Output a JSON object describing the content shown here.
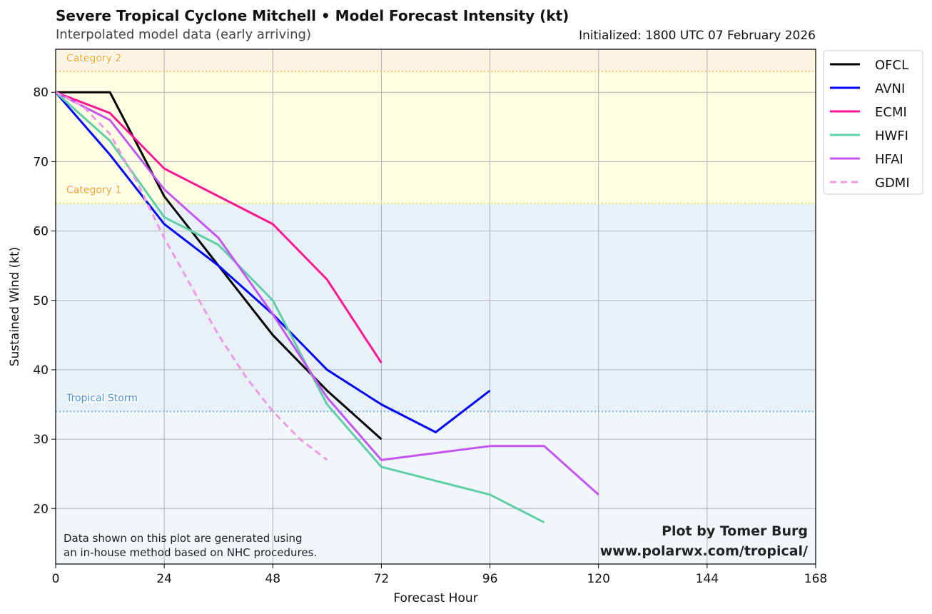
{
  "chart_data": {
    "type": "line",
    "title": "Severe Tropical Cyclone Mitchell • Model Forecast Intensity (kt)",
    "subtitle": "Interpolated model data (early arriving)",
    "initialized": "Initialized: 1800 UTC 07 February 2026",
    "xlabel": "Forecast Hour",
    "ylabel": "Sustained Wind (kt)",
    "xlim": [
      0,
      168
    ],
    "ylim": [
      12,
      86.2
    ],
    "xticks": [
      0,
      24,
      48,
      72,
      96,
      120,
      144,
      168
    ],
    "yticks": [
      20,
      30,
      40,
      50,
      60,
      70,
      80
    ],
    "grid": true,
    "legend_position": "outside-top-right",
    "bands": [
      {
        "label": "Category 2",
        "from": 83,
        "to": 90,
        "fill": "#fdf3e1",
        "line": "#f5c86a"
      },
      {
        "label": "Category 1",
        "from": 64,
        "to": 83,
        "fill": "#ffffe4",
        "line": "#e8e860"
      },
      {
        "label": "Tropical Storm",
        "from": 34,
        "to": 64,
        "fill": "#e8f1f8",
        "line": "#7fb3e0"
      },
      {
        "label": "",
        "from": 0,
        "to": 34,
        "fill": "#f1f6fa",
        "line": null
      }
    ],
    "band_label_colors": {
      "Category 2": "#f5a623",
      "Category 1": "#f5a623",
      "Tropical Storm": "#4a90d9"
    },
    "series": [
      {
        "name": "OFCL",
        "color": "#000000",
        "dashed": false,
        "x": [
          0,
          12,
          24,
          36,
          48,
          60,
          72
        ],
        "y": [
          80,
          80,
          65,
          55,
          45,
          37,
          30
        ]
      },
      {
        "name": "AVNI",
        "color": "#0000ff",
        "dashed": false,
        "x": [
          0,
          12,
          24,
          36,
          48,
          60,
          72,
          84,
          96
        ],
        "y": [
          80,
          71,
          61,
          55,
          48,
          40,
          35,
          31,
          37
        ]
      },
      {
        "name": "ECMI",
        "color": "#ff1493",
        "dashed": false,
        "x": [
          0,
          12,
          24,
          36,
          48,
          60,
          72
        ],
        "y": [
          80,
          77,
          69,
          65,
          61,
          53,
          41
        ]
      },
      {
        "name": "HWFI",
        "color": "#5fcfa5",
        "dashed": false,
        "x": [
          0,
          12,
          24,
          36,
          48,
          60,
          72,
          96,
          108
        ],
        "y": [
          80,
          73,
          62,
          58,
          50,
          35,
          26,
          22,
          18
        ]
      },
      {
        "name": "HFAI",
        "color": "#c355f5",
        "dashed": false,
        "x": [
          0,
          12,
          24,
          36,
          48,
          60,
          72,
          96,
          108,
          120
        ],
        "y": [
          80,
          76,
          66,
          59,
          48,
          36,
          27,
          29,
          29,
          22
        ]
      },
      {
        "name": "GDMI",
        "color": "#ee99e6",
        "dashed": true,
        "x": [
          0,
          6,
          12,
          18,
          24,
          30,
          36,
          42,
          48,
          54,
          60
        ],
        "y": [
          80,
          78,
          74,
          67,
          59,
          52,
          45,
          39,
          34,
          30,
          27
        ]
      }
    ],
    "annotations": {
      "disclaimer_line1": "Data shown on this plot are generated using",
      "disclaimer_line2": "an in-house method based on NHC procedures.",
      "credit_line1": "Plot by Tomer Burg",
      "credit_line2": "www.polarwx.com/tropical/"
    }
  }
}
